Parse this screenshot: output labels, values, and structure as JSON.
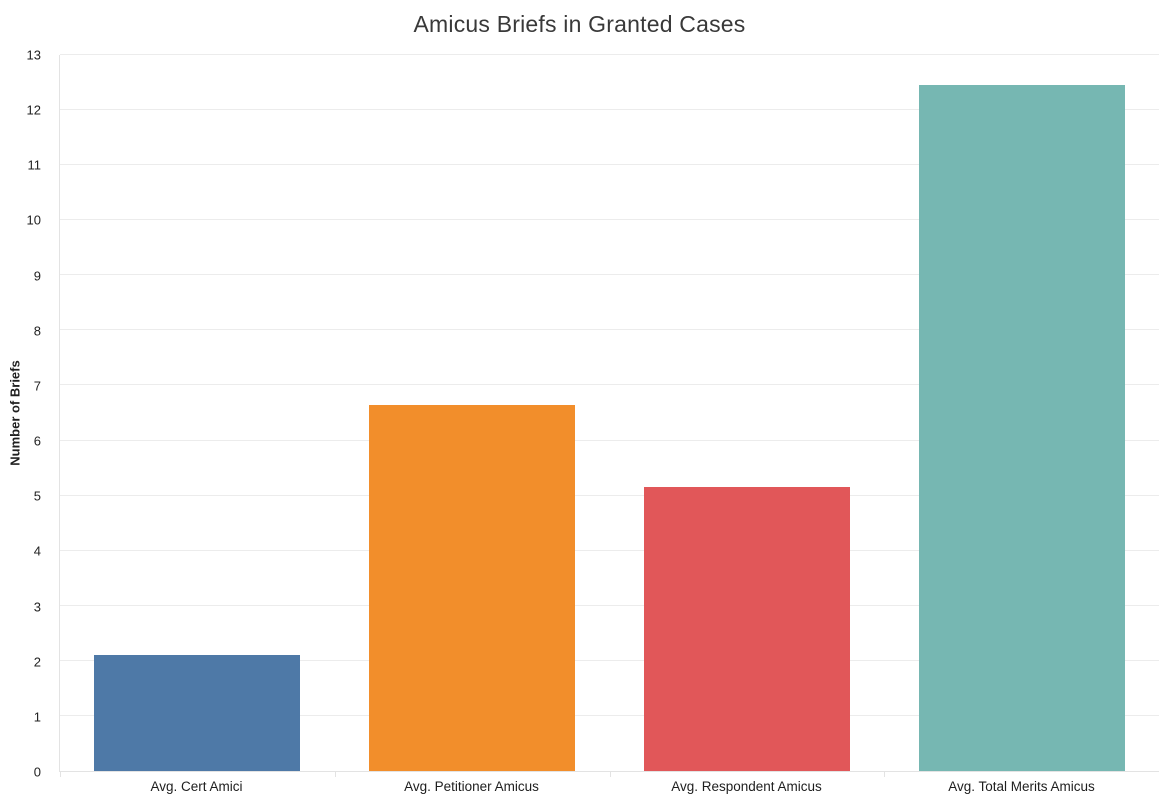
{
  "title": "Amicus Briefs in Granted Cases",
  "chart_data": {
    "type": "bar",
    "title": "Amicus Briefs in Granted Cases",
    "categories": [
      "Avg. Cert Amici",
      "Avg. Petitioner Amicus",
      "Avg. Respondent Amicus",
      "Avg. Total Merits Amicus"
    ],
    "values": [
      2.1,
      6.65,
      5.15,
      12.45
    ],
    "bar_colors": [
      "#4e79a7",
      "#f28e2b",
      "#e15759",
      "#76b7b2"
    ],
    "xlabel": "",
    "ylabel": "Number of Briefs",
    "ylim": [
      0,
      13
    ],
    "ytick_step": 1,
    "ytick_labels": [
      "0",
      "1",
      "2",
      "3",
      "4",
      "5",
      "6",
      "7",
      "8",
      "9",
      "10",
      "11",
      "12",
      "13"
    ],
    "grid": true,
    "legend_position": "none",
    "bar_width_fraction": 0.75,
    "colors": {
      "background": "#ffffff",
      "gridline": "#ececec",
      "axis_line": "#e3e3e3",
      "title_text": "#393939",
      "tick_text": "#222222",
      "category_text": "#1e1e1e",
      "axis_title_text": "#1f1f1f"
    }
  }
}
